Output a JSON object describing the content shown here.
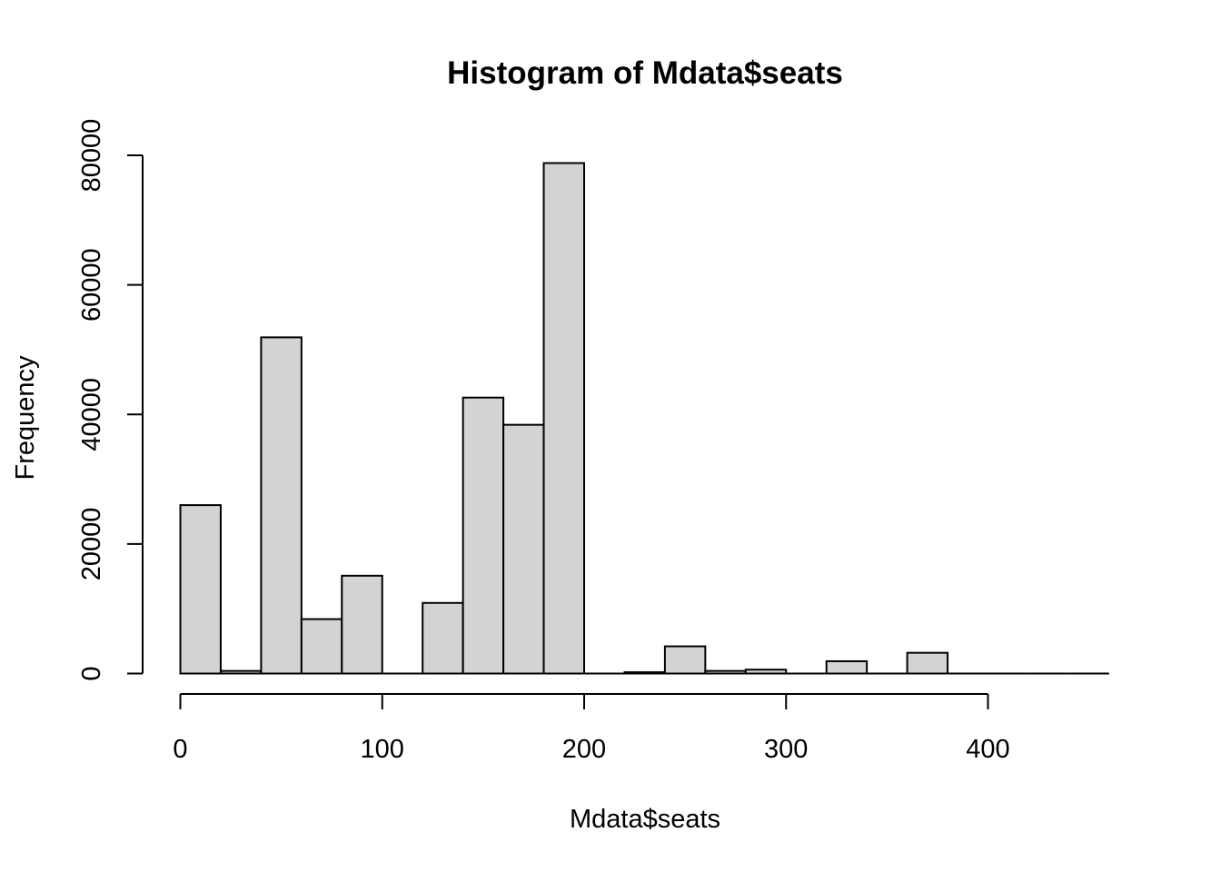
{
  "chart_data": {
    "type": "bar",
    "title": "Histogram of Mdata$seats",
    "xlabel": "Mdata$seats",
    "ylabel": "Frequency",
    "bin_width": 20,
    "x_range": [
      0,
      460
    ],
    "xlim": [
      0,
      460
    ],
    "ylim": [
      0,
      80000
    ],
    "x_ticks": [
      0,
      100,
      200,
      300,
      400
    ],
    "y_ticks": [
      0,
      20000,
      40000,
      60000,
      80000
    ],
    "x_tick_labels": [
      "0",
      "100",
      "200",
      "300",
      "400"
    ],
    "y_tick_labels": [
      "0",
      "20000",
      "40000",
      "60000",
      "80000"
    ],
    "bins": [
      {
        "x0": 0,
        "x1": 20,
        "count": 26000
      },
      {
        "x0": 20,
        "x1": 40,
        "count": 400
      },
      {
        "x0": 40,
        "x1": 60,
        "count": 51900
      },
      {
        "x0": 60,
        "x1": 80,
        "count": 8400
      },
      {
        "x0": 80,
        "x1": 100,
        "count": 15100
      },
      {
        "x0": 100,
        "x1": 120,
        "count": 0
      },
      {
        "x0": 120,
        "x1": 140,
        "count": 10900
      },
      {
        "x0": 140,
        "x1": 160,
        "count": 42600
      },
      {
        "x0": 160,
        "x1": 180,
        "count": 38400
      },
      {
        "x0": 180,
        "x1": 200,
        "count": 78800
      },
      {
        "x0": 200,
        "x1": 220,
        "count": 0
      },
      {
        "x0": 220,
        "x1": 240,
        "count": 200
      },
      {
        "x0": 240,
        "x1": 260,
        "count": 4200
      },
      {
        "x0": 260,
        "x1": 280,
        "count": 400
      },
      {
        "x0": 280,
        "x1": 300,
        "count": 600
      },
      {
        "x0": 300,
        "x1": 320,
        "count": 0
      },
      {
        "x0": 320,
        "x1": 340,
        "count": 1900
      },
      {
        "x0": 340,
        "x1": 360,
        "count": 0
      },
      {
        "x0": 360,
        "x1": 380,
        "count": 3200
      },
      {
        "x0": 380,
        "x1": 400,
        "count": 0
      },
      {
        "x0": 400,
        "x1": 420,
        "count": 0
      },
      {
        "x0": 420,
        "x1": 440,
        "count": 0
      },
      {
        "x0": 440,
        "x1": 460,
        "count": 0
      }
    ],
    "bar_fill": "#d3d3d3",
    "bar_stroke": "#000000",
    "grid": false,
    "legend": "none"
  }
}
